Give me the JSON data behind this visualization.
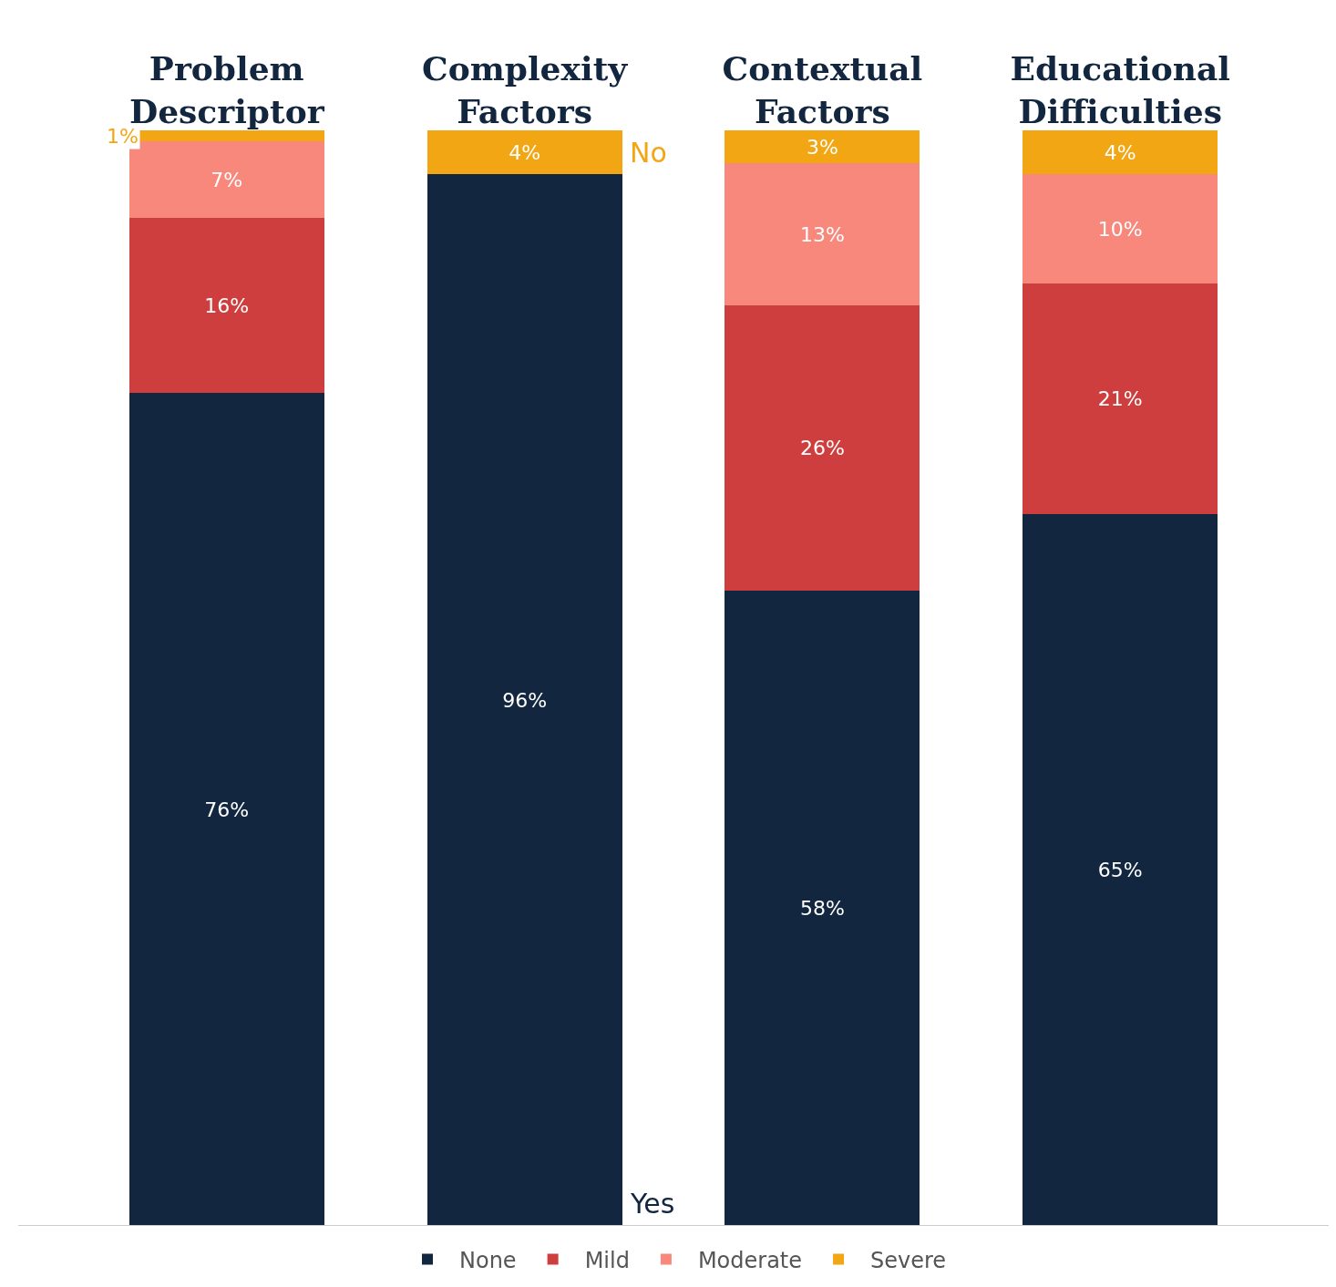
{
  "chart_data": {
    "type": "bar",
    "stacked": true,
    "tick_labels": "x",
    "legend": "bottom",
    "categories": [
      "Problem Descriptor",
      "Complexity Factors",
      "Contextual Factors",
      "Educational Difficulties"
    ],
    "series": [
      {
        "name": "None",
        "color": "#12263f",
        "values": [
          76,
          96,
          58,
          65
        ],
        "value_labels": [
          "76%",
          "96%",
          "58%",
          "65%"
        ]
      },
      {
        "name": "Mild",
        "color": "#cf3e3e",
        "values": [
          16,
          null,
          26,
          21
        ],
        "value_labels": [
          "16%",
          null,
          "26%",
          "21%"
        ]
      },
      {
        "name": "Moderate",
        "color": "#f7887b",
        "values": [
          7,
          null,
          13,
          10
        ],
        "value_labels": [
          "7%",
          null,
          "13%",
          "10%"
        ]
      },
      {
        "name": "Severe",
        "color": "#f2a614",
        "values": [
          1,
          4,
          3,
          4
        ],
        "value_labels": [
          "1%",
          "4%",
          "3%",
          "4%"
        ]
      }
    ],
    "annotations": [
      "No",
      "Yes"
    ]
  }
}
